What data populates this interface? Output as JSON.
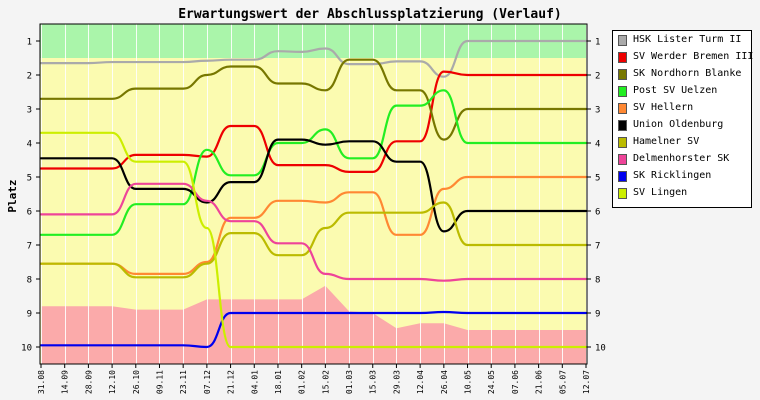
{
  "chart_data": {
    "type": "line",
    "title": "Erwartungswert der Abschlussplatzierung (Verlauf)",
    "ylabel": "Platz",
    "xlabel": "",
    "y_ticks": [
      "1",
      "2",
      "3",
      "4",
      "5",
      "6",
      "7",
      "8",
      "9",
      "10"
    ],
    "ylim": [
      0.5,
      10.5
    ],
    "y_inverted": true,
    "y_axis_both_sides": true,
    "grid": "vertical",
    "legend_placement": "right",
    "categories": [
      "31.08",
      "14.09",
      "28.09",
      "12.10",
      "26.10",
      "09.11",
      "23.11",
      "07.12",
      "21.12",
      "04.01",
      "18.01",
      "01.02",
      "15.02",
      "01.03",
      "15.03",
      "29.03",
      "12.04",
      "26.04",
      "10.05",
      "24.05",
      "07.06",
      "21.06",
      "05.07",
      "12.07"
    ],
    "bands": [
      {
        "from": 0.5,
        "to": 1.5,
        "color": "#aaf5aa"
      },
      {
        "from": 1.5,
        "to": 8.5,
        "color": "#fbfbb0"
      },
      {
        "from": 8.5,
        "to": 10.5,
        "color": "#fbfbb0"
      }
    ],
    "relegation_area": {
      "color": "#fbaaaa",
      "top": [
        8.8,
        8.8,
        8.8,
        8.8,
        8.9,
        8.9,
        8.9,
        8.6,
        8.6,
        8.6,
        8.6,
        8.6,
        8.2,
        8.95,
        9.0,
        9.45,
        9.3,
        9.3,
        9.5,
        9.5,
        9.5,
        9.5,
        9.5,
        9.5
      ]
    },
    "series": [
      {
        "name": "HSK Lister Turm II",
        "color": "#aaaaaa",
        "values": [
          1.65,
          1.65,
          1.65,
          1.62,
          1.62,
          1.62,
          1.62,
          1.58,
          1.55,
          1.55,
          1.3,
          1.32,
          1.22,
          1.68,
          1.68,
          1.6,
          1.6,
          2.05,
          1.0,
          1.0,
          1.0,
          1.0,
          1.0,
          1.0
        ]
      },
      {
        "name": "SV Werder Bremen III",
        "color": "#ee0000",
        "values": [
          4.75,
          4.75,
          4.75,
          4.75,
          4.35,
          4.35,
          4.35,
          4.4,
          3.5,
          3.5,
          4.65,
          4.65,
          4.65,
          4.85,
          4.85,
          3.95,
          3.95,
          1.9,
          2.0,
          2.0,
          2.0,
          2.0,
          2.0,
          2.0
        ]
      },
      {
        "name": "SK Nordhorn Blanke",
        "color": "#777700",
        "values": [
          2.7,
          2.7,
          2.7,
          2.7,
          2.4,
          2.4,
          2.4,
          2.0,
          1.75,
          1.75,
          2.25,
          2.25,
          2.45,
          1.55,
          1.55,
          2.45,
          2.45,
          3.9,
          3.0,
          3.0,
          3.0,
          3.0,
          3.0,
          3.0
        ]
      },
      {
        "name": "Post SV Uelzen",
        "color": "#22ee22",
        "values": [
          6.7,
          6.7,
          6.7,
          6.7,
          5.8,
          5.8,
          5.8,
          4.2,
          4.95,
          4.95,
          4.0,
          4.0,
          3.6,
          4.45,
          4.45,
          2.9,
          2.9,
          2.45,
          4.0,
          4.0,
          4.0,
          4.0,
          4.0,
          4.0
        ]
      },
      {
        "name": "SV Hellern",
        "color": "#ff8833",
        "values": [
          7.55,
          7.55,
          7.55,
          7.55,
          7.85,
          7.85,
          7.85,
          7.5,
          6.2,
          6.2,
          5.7,
          5.7,
          5.75,
          5.45,
          5.45,
          6.7,
          6.7,
          5.35,
          5.0,
          5.0,
          5.0,
          5.0,
          5.0,
          5.0
        ]
      },
      {
        "name": "Union Oldenburg",
        "color": "#000000",
        "values": [
          4.45,
          4.45,
          4.45,
          4.45,
          5.35,
          5.35,
          5.35,
          5.75,
          5.15,
          5.15,
          3.9,
          3.9,
          4.05,
          3.95,
          3.95,
          4.55,
          4.55,
          6.6,
          6.0,
          6.0,
          6.0,
          6.0,
          6.0,
          6.0
        ]
      },
      {
        "name": "Hamelner SV",
        "color": "#bbbb00",
        "values": [
          7.55,
          7.55,
          7.55,
          7.55,
          7.95,
          7.95,
          7.95,
          7.55,
          6.65,
          6.65,
          7.3,
          7.3,
          6.5,
          6.05,
          6.05,
          6.05,
          6.05,
          5.75,
          7.0,
          7.0,
          7.0,
          7.0,
          7.0,
          7.0
        ]
      },
      {
        "name": "Delmenhorster SK",
        "color": "#ee4499",
        "values": [
          6.1,
          6.1,
          6.1,
          6.1,
          5.2,
          5.2,
          5.2,
          5.7,
          6.3,
          6.3,
          6.95,
          6.95,
          7.85,
          8.0,
          8.0,
          8.0,
          8.0,
          8.05,
          8.0,
          8.0,
          8.0,
          8.0,
          8.0,
          8.0
        ]
      },
      {
        "name": "SK Ricklingen",
        "color": "#0000ee",
        "values": [
          9.95,
          9.95,
          9.95,
          9.95,
          9.95,
          9.95,
          9.95,
          10.0,
          9.0,
          9.0,
          9.0,
          9.0,
          9.0,
          9.0,
          9.0,
          9.0,
          9.0,
          8.97,
          9.0,
          9.0,
          9.0,
          9.0,
          9.0,
          9.0
        ]
      },
      {
        "name": "SV Lingen",
        "color": "#ccee00",
        "values": [
          3.7,
          3.7,
          3.7,
          3.7,
          4.55,
          4.55,
          4.55,
          6.5,
          10.0,
          10.0,
          10.0,
          10.0,
          10.0,
          10.0,
          10.0,
          10.0,
          10.0,
          10.0,
          10.0,
          10.0,
          10.0,
          10.0,
          10.0,
          10.0
        ]
      }
    ]
  }
}
